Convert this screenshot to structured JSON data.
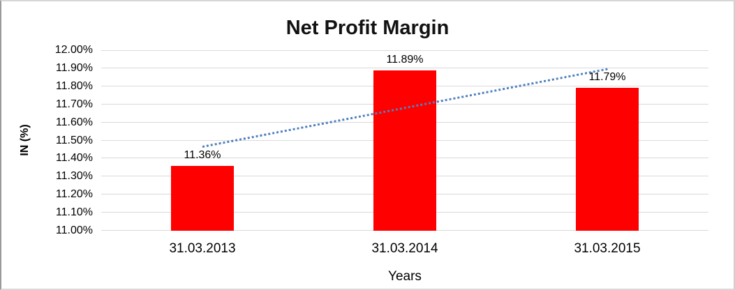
{
  "chart_data": {
    "type": "bar",
    "title": "Net Profit Margin",
    "categories": [
      "31.03.2013",
      "31.03.2014",
      "31.03.2015"
    ],
    "values": [
      11.36,
      11.89,
      11.79
    ],
    "data_labels": [
      "11.36%",
      "11.89%",
      "11.79%"
    ],
    "xlabel": "Years",
    "ylabel": "IN (%)",
    "ylim": [
      11.0,
      12.0
    ],
    "ytick_labels": [
      "12.00%",
      "11.90%",
      "11.80%",
      "11.70%",
      "11.60%",
      "11.50%",
      "11.40%",
      "11.30%",
      "11.20%",
      "11.10%",
      "11.00%"
    ],
    "grid": true,
    "legend": false,
    "trendline": {
      "type": "linear",
      "style": "dotted"
    },
    "colors": {
      "bar": "#FF0000",
      "gridline": "#D9D9D9",
      "trendline": "#4F81BD",
      "text": "#000000"
    }
  }
}
